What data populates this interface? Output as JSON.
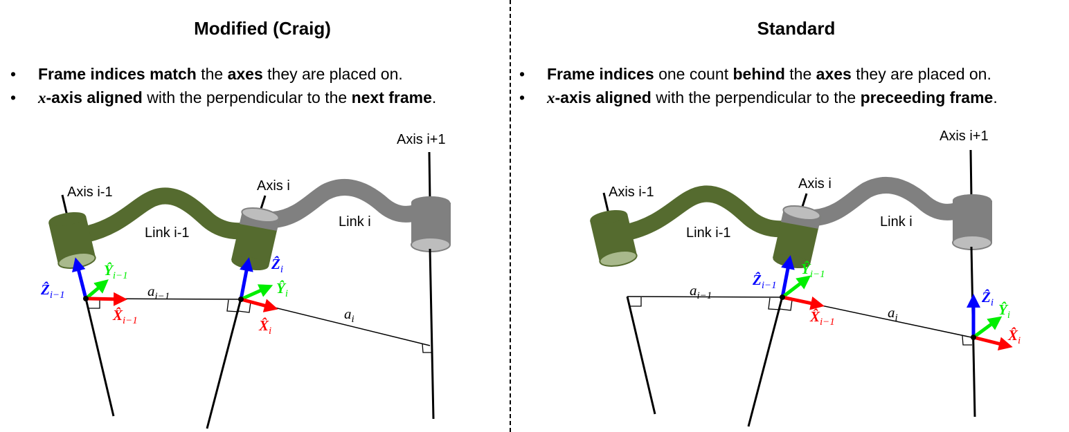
{
  "left": {
    "title": "Modified (Craig)",
    "bullets": [
      {
        "parts": [
          [
            "Frame indices match",
            true
          ],
          [
            " the ",
            false
          ],
          [
            "axes",
            true
          ],
          [
            " they are placed on.",
            false
          ]
        ]
      },
      {
        "math": "x",
        "parts": [
          [
            "-axis aligned",
            true
          ],
          [
            " with the perpendicular to the ",
            false
          ],
          [
            "next frame",
            true
          ],
          [
            ".",
            false
          ]
        ]
      }
    ]
  },
  "right": {
    "title": "Standard",
    "bullets": [
      {
        "parts": [
          [
            "Frame indices",
            true
          ],
          [
            " one count ",
            false
          ],
          [
            "behind",
            true
          ],
          [
            " the ",
            false
          ],
          [
            "axes",
            true
          ],
          [
            " they are placed on.",
            false
          ]
        ]
      },
      {
        "math": "x",
        "parts": [
          [
            "-axis aligned",
            true
          ],
          [
            " with the perpendicular to the ",
            false
          ],
          [
            "preceeding frame",
            true
          ],
          [
            ".",
            false
          ]
        ]
      }
    ]
  },
  "labels": {
    "axis_prev": "Axis i-1",
    "axis_i": "Axis i",
    "axis_next": "Axis i+1",
    "link_prev": "Link i-1",
    "link_i": "Link i"
  },
  "frame_labels": {
    "z_prev": {
      "hat": "Z",
      "sub": "i−1"
    },
    "y_prev": {
      "hat": "Y",
      "sub": "i−1"
    },
    "x_prev": {
      "hat": "X",
      "sub": "i−1"
    },
    "z_i": {
      "hat": "Z",
      "sub": "i"
    },
    "y_i": {
      "hat": "Y",
      "sub": "i"
    },
    "x_i": {
      "hat": "X",
      "sub": "i"
    },
    "a_prev": {
      "sym": "a",
      "sub": "i−1"
    },
    "a_i": {
      "sym": "a",
      "sub": "i"
    }
  },
  "colors": {
    "link_green": "#556b2f",
    "link_gray": "#808080",
    "z_axis": "#0000ff",
    "y_axis": "#00ee00",
    "x_axis": "#ff0000"
  }
}
